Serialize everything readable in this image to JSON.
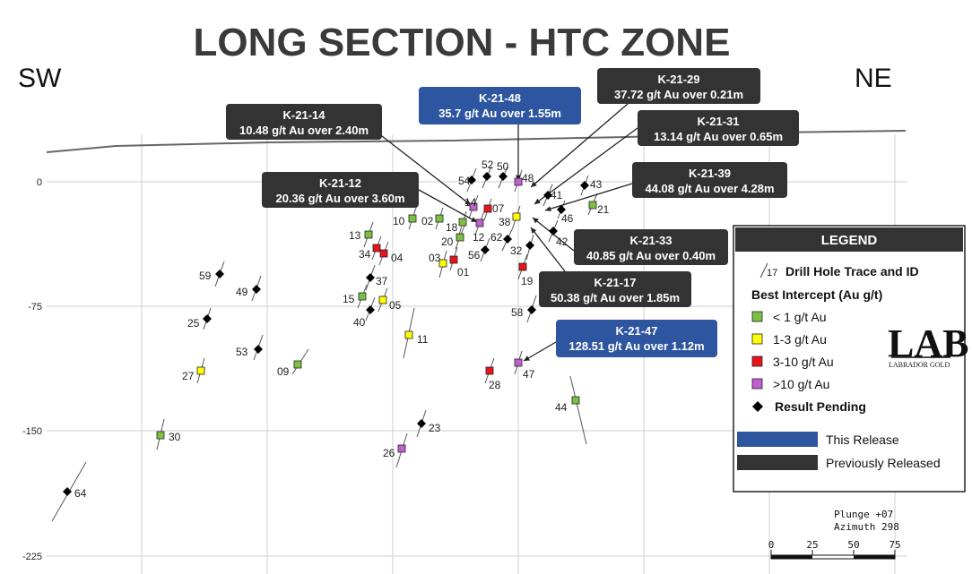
{
  "title": "LONG SECTION - HTC ZONE",
  "direction_left": "SW",
  "direction_right": "NE",
  "elevations": [
    {
      "label": "0",
      "y": 0
    },
    {
      "label": "-75",
      "y": -75
    },
    {
      "label": "-150",
      "y": -150
    },
    {
      "label": "-225",
      "y": -225
    }
  ],
  "colors": {
    "green": "#7ac143",
    "yellow": "#ffff00",
    "red": "#e8131b",
    "purple": "#c15fd1",
    "pending": "#000000",
    "blue_box": "#2e55a0",
    "dark_box": "#333333"
  },
  "holes": [
    {
      "id": "54",
      "type": "pending"
    },
    {
      "id": "52",
      "type": "pending"
    },
    {
      "id": "50",
      "type": "pending"
    },
    {
      "id": "48",
      "type": "purple"
    },
    {
      "id": "43",
      "type": "pending"
    },
    {
      "id": "41",
      "type": "pending"
    },
    {
      "id": "21",
      "type": "green"
    },
    {
      "id": "46",
      "type": "pending"
    },
    {
      "id": "14",
      "type": "purple"
    },
    {
      "id": "07",
      "type": "red"
    },
    {
      "id": "38",
      "type": "yellow"
    },
    {
      "id": "10",
      "type": "green"
    },
    {
      "id": "02",
      "type": "green"
    },
    {
      "id": "18",
      "type": "green"
    },
    {
      "id": "12",
      "type": "purple"
    },
    {
      "id": "62",
      "type": "pending"
    },
    {
      "id": "42",
      "type": "pending"
    },
    {
      "id": "13",
      "type": "green"
    },
    {
      "id": "20",
      "type": "green"
    },
    {
      "id": "34",
      "type": "red"
    },
    {
      "id": "04",
      "type": "red"
    },
    {
      "id": "03",
      "type": "yellow"
    },
    {
      "id": "01",
      "type": "red"
    },
    {
      "id": "56",
      "type": "pending"
    },
    {
      "id": "32",
      "type": "pending"
    },
    {
      "id": "19",
      "type": "red"
    },
    {
      "id": "59",
      "type": "pending"
    },
    {
      "id": "37",
      "type": "pending"
    },
    {
      "id": "49",
      "type": "pending"
    },
    {
      "id": "15",
      "type": "green"
    },
    {
      "id": "05",
      "type": "yellow"
    },
    {
      "id": "58",
      "type": "pending"
    },
    {
      "id": "25",
      "type": "pending"
    },
    {
      "id": "40",
      "type": "pending"
    },
    {
      "id": "11",
      "type": "yellow"
    },
    {
      "id": "53",
      "type": "pending"
    },
    {
      "id": "09",
      "type": "green"
    },
    {
      "id": "27",
      "type": "yellow"
    },
    {
      "id": "28",
      "type": "red"
    },
    {
      "id": "47",
      "type": "purple"
    },
    {
      "id": "44",
      "type": "green"
    },
    {
      "id": "30",
      "type": "green"
    },
    {
      "id": "23",
      "type": "pending"
    },
    {
      "id": "26",
      "type": "purple"
    },
    {
      "id": "64",
      "type": "pending"
    }
  ],
  "callouts": [
    {
      "id": "K-21-48",
      "text": "35.7 g/t Au over 1.55m",
      "release": "this"
    },
    {
      "id": "K-21-29",
      "text": "37.72 g/t Au over 0.21m",
      "release": "previous"
    },
    {
      "id": "K-21-14",
      "text": "10.48 g/t Au over 2.40m",
      "release": "previous"
    },
    {
      "id": "K-21-31",
      "text": "13.14 g/t Au over 0.65m",
      "release": "previous"
    },
    {
      "id": "K-21-39",
      "text": "44.08 g/t Au over 4.28m",
      "release": "previous"
    },
    {
      "id": "K-21-12",
      "text": "20.36 g/t Au over 3.60m",
      "release": "previous"
    },
    {
      "id": "K-21-33",
      "text": "40.85 g/t Au over 0.40m",
      "release": "previous"
    },
    {
      "id": "K-21-17",
      "text": "50.38 g/t Au over 1.85m",
      "release": "previous"
    },
    {
      "id": "K-21-47",
      "text": "128.51 g/t Au over 1.12m",
      "release": "this"
    }
  ],
  "legend": {
    "title": "LEGEND",
    "trace_example_id": "17",
    "trace_label": "Drill Hole Trace and ID",
    "intercept_heading": "Best Intercept (Au g/t)",
    "items": [
      {
        "label": "< 1 g/t Au",
        "type": "green"
      },
      {
        "label": "1-3 g/t Au",
        "type": "yellow"
      },
      {
        "label": "3-10 g/t Au",
        "type": "red"
      },
      {
        "label": ">10 g/t Au",
        "type": "purple"
      },
      {
        "label": "Result Pending",
        "type": "pending"
      }
    ],
    "this_release": "This Release",
    "previously_released": "Previously Released"
  },
  "logo": {
    "mark": "LAB",
    "name": "LABRADOR GOLD"
  },
  "plunge": "Plunge +07",
  "azimuth": "Azimuth 298",
  "scale_labels": [
    "0",
    "25",
    "50",
    "75"
  ]
}
